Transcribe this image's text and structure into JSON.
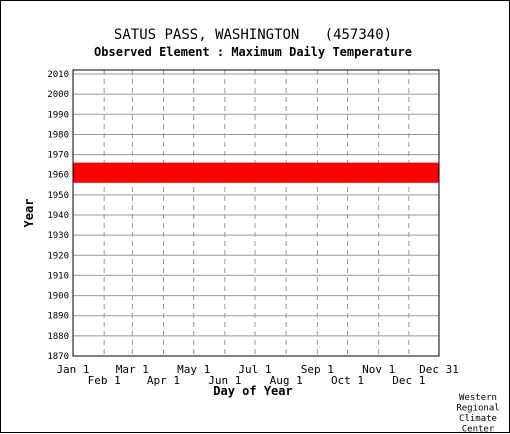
{
  "chart_data": {
    "type": "scatter",
    "title": "SATUS PASS, WASHINGTON   (457340)",
    "subtitle": "Observed Element : Maximum Daily Temperature",
    "xlabel": "Day of Year",
    "ylabel": "Year",
    "xlim": [
      1,
      365
    ],
    "ylim": [
      1870,
      2012
    ],
    "x_ticks": [
      {
        "day": 1,
        "label": "Jan 1",
        "row": 1
      },
      {
        "day": 32,
        "label": "Feb 1",
        "row": 2
      },
      {
        "day": 60,
        "label": "Mar 1",
        "row": 1
      },
      {
        "day": 91,
        "label": "Apr 1",
        "row": 2
      },
      {
        "day": 121,
        "label": "May 1",
        "row": 1
      },
      {
        "day": 152,
        "label": "Jun 1",
        "row": 2
      },
      {
        "day": 182,
        "label": "Jul 1",
        "row": 1
      },
      {
        "day": 213,
        "label": "Aug 1",
        "row": 2
      },
      {
        "day": 244,
        "label": "Sep 1",
        "row": 1
      },
      {
        "day": 274,
        "label": "Oct 1",
        "row": 2
      },
      {
        "day": 305,
        "label": "Nov 1",
        "row": 1
      },
      {
        "day": 335,
        "label": "Dec 1",
        "row": 2
      },
      {
        "day": 365,
        "label": "Dec 31",
        "row": 1
      }
    ],
    "y_ticks": [
      1870,
      1880,
      1890,
      1900,
      1910,
      1920,
      1930,
      1940,
      1950,
      1960,
      1970,
      1980,
      1990,
      2000,
      2010
    ],
    "grid": true,
    "series": [
      {
        "color": "#ff0000",
        "year_start": 1956,
        "year_end": 1966,
        "day_start": 1,
        "day_end": 365
      }
    ]
  },
  "credit": {
    "lines": [
      "Western",
      "Regional",
      "Climate",
      "Center"
    ]
  }
}
